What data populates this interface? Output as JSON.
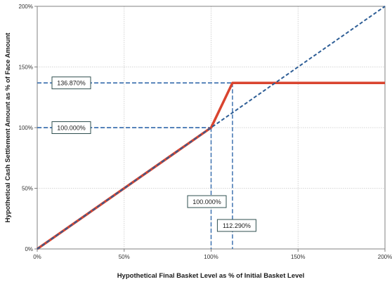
{
  "chart_data": {
    "type": "line",
    "xlabel": "Hypothetical Final Basket Level as % of Initial Basket Level",
    "ylabel": "Hypothetical Cash Settlement Amount as % of Face Amount",
    "xlim": [
      0,
      200
    ],
    "ylim": [
      0,
      200
    ],
    "x_ticks": [
      "0%",
      "50%",
      "100%",
      "150%",
      "200%"
    ],
    "y_ticks": [
      "0%",
      "50%",
      "100%",
      "150%",
      "200%"
    ],
    "grid": true,
    "series": [
      {
        "style": "solid",
        "color": "#d9442f",
        "points": [
          [
            0,
            0
          ],
          [
            100,
            100
          ],
          [
            112.29,
            136.87
          ],
          [
            200,
            136.87
          ]
        ]
      },
      {
        "style": "dashed",
        "color": "#2e5e96",
        "points": [
          [
            0,
            0
          ],
          [
            200,
            200
          ]
        ]
      }
    ],
    "annotations": [
      {
        "text": "136.870%",
        "value": 136.87,
        "orientation": "horizontal"
      },
      {
        "text": "100.000%",
        "value": 100,
        "orientation": "horizontal"
      },
      {
        "text": "100.000%",
        "value": 100,
        "orientation": "vertical"
      },
      {
        "text": "112.290%",
        "value": 112.29,
        "orientation": "vertical"
      }
    ],
    "guide_color": "#3f72b0"
  }
}
